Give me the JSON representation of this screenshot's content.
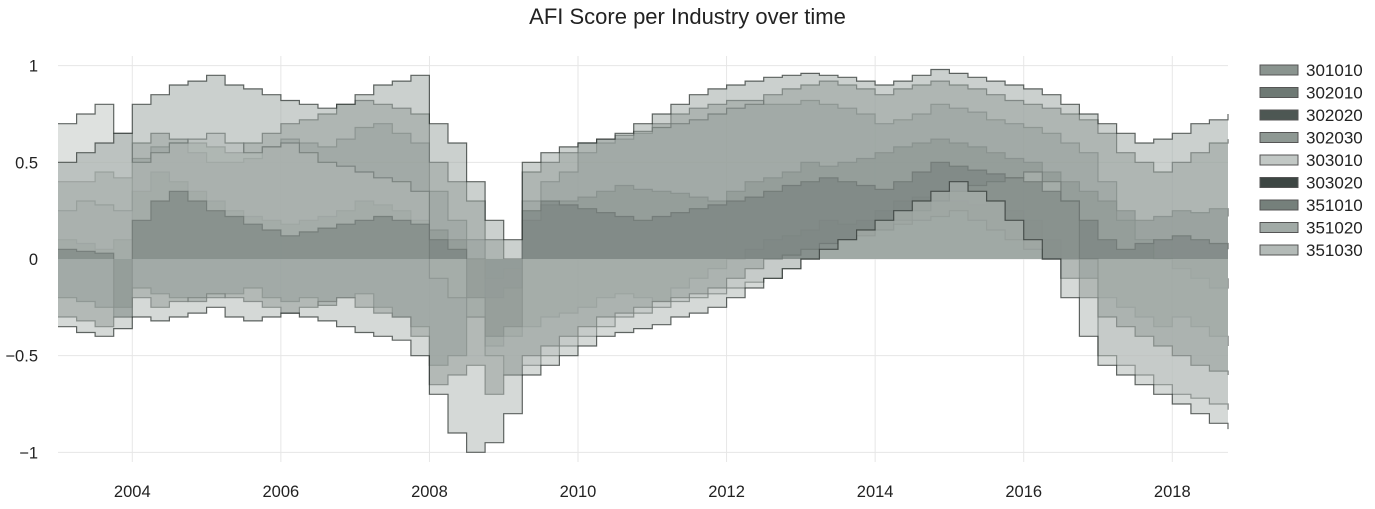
{
  "chart_data": {
    "type": "area",
    "title": "AFI Score per Industry over time",
    "xlabel": "",
    "ylabel": "",
    "xlim": [
      2003.0,
      2018.75
    ],
    "ylim": [
      -1.05,
      1.05
    ],
    "x_ticks": [
      2004,
      2006,
      2008,
      2010,
      2012,
      2014,
      2016,
      2018
    ],
    "y_ticks": [
      -1,
      -0.5,
      0,
      0.5,
      1
    ],
    "y_tick_labels": [
      "−1",
      "−0.5",
      "0",
      "0.5",
      "1"
    ],
    "grid": true,
    "stacked": false,
    "step": true,
    "legend_position": "right",
    "x": [
      2003.0,
      2003.25,
      2003.5,
      2003.75,
      2004.0,
      2004.25,
      2004.5,
      2004.75,
      2005.0,
      2005.25,
      2005.5,
      2005.75,
      2006.0,
      2006.25,
      2006.5,
      2006.75,
      2007.0,
      2007.25,
      2007.5,
      2007.75,
      2008.0,
      2008.25,
      2008.5,
      2008.75,
      2009.0,
      2009.25,
      2009.5,
      2009.75,
      2010.0,
      2010.25,
      2010.5,
      2010.75,
      2011.0,
      2011.25,
      2011.5,
      2011.75,
      2012.0,
      2012.25,
      2012.5,
      2012.75,
      2013.0,
      2013.25,
      2013.5,
      2013.75,
      2014.0,
      2014.25,
      2014.5,
      2014.75,
      2015.0,
      2015.25,
      2015.5,
      2015.75,
      2016.0,
      2016.25,
      2016.5,
      2016.75,
      2017.0,
      2017.25,
      2017.5,
      2017.75,
      2018.0,
      2018.25,
      2018.5,
      2018.75
    ],
    "series": [
      {
        "name": "301010",
        "color": "#8a948f",
        "values": [
          0.4,
          0.4,
          0.45,
          0.42,
          0.52,
          0.58,
          0.6,
          0.55,
          0.5,
          0.5,
          0.52,
          0.58,
          0.62,
          0.6,
          0.58,
          0.62,
          0.68,
          0.7,
          0.65,
          0.6,
          0.35,
          0.2,
          0.1,
          -0.1,
          -0.05,
          0.3,
          0.4,
          0.45,
          0.55,
          0.6,
          0.62,
          0.65,
          0.7,
          0.75,
          0.78,
          0.8,
          0.82,
          0.82,
          0.8,
          0.8,
          0.82,
          0.8,
          0.78,
          0.75,
          0.7,
          0.72,
          0.75,
          0.8,
          0.78,
          0.76,
          0.72,
          0.7,
          0.68,
          0.65,
          0.6,
          0.55,
          0.4,
          0.2,
          0.1,
          0.0,
          -0.05,
          -0.1,
          -0.15,
          -0.1
        ]
      },
      {
        "name": "302010",
        "color": "#6e7974",
        "values": [
          -0.2,
          -0.22,
          -0.25,
          -0.3,
          -0.15,
          -0.18,
          -0.2,
          -0.22,
          -0.2,
          -0.18,
          -0.15,
          -0.2,
          -0.22,
          -0.2,
          -0.24,
          -0.2,
          -0.18,
          -0.25,
          -0.3,
          -0.35,
          -0.55,
          -0.5,
          -0.3,
          -0.45,
          -0.4,
          -0.35,
          -0.3,
          -0.28,
          -0.25,
          -0.2,
          -0.18,
          -0.2,
          -0.22,
          -0.15,
          -0.1,
          -0.05,
          0.0,
          0.05,
          0.1,
          0.12,
          0.15,
          0.2,
          0.18,
          0.2,
          0.25,
          0.3,
          0.32,
          0.35,
          0.3,
          0.28,
          0.3,
          0.25,
          0.2,
          0.1,
          0.0,
          -0.1,
          -0.2,
          -0.25,
          -0.3,
          -0.35,
          -0.3,
          -0.35,
          -0.4,
          -0.45
        ]
      },
      {
        "name": "302020",
        "color": "#4d5753",
        "values": [
          0.1,
          0.08,
          0.05,
          0.1,
          0.35,
          0.45,
          0.4,
          0.35,
          0.3,
          0.25,
          0.22,
          0.2,
          0.18,
          0.2,
          0.22,
          0.25,
          0.3,
          0.28,
          0.25,
          0.2,
          0.15,
          0.1,
          0.0,
          -0.2,
          -0.15,
          0.2,
          0.28,
          0.3,
          0.32,
          0.35,
          0.38,
          0.36,
          0.35,
          0.34,
          0.32,
          0.3,
          0.35,
          0.4,
          0.42,
          0.45,
          0.5,
          0.48,
          0.5,
          0.52,
          0.55,
          0.58,
          0.6,
          0.62,
          0.6,
          0.58,
          0.55,
          0.52,
          0.5,
          0.45,
          0.4,
          0.35,
          0.3,
          0.25,
          0.2,
          0.22,
          0.25,
          0.24,
          0.26,
          0.22
        ]
      },
      {
        "name": "302030",
        "color": "#8e9893",
        "values": [
          0.25,
          0.3,
          0.28,
          0.25,
          0.6,
          0.65,
          0.62,
          0.6,
          0.58,
          0.55,
          0.6,
          0.65,
          0.7,
          0.72,
          0.75,
          0.8,
          0.82,
          0.8,
          0.78,
          0.75,
          0.5,
          0.4,
          0.3,
          0.1,
          0.0,
          0.45,
          0.5,
          0.55,
          0.6,
          0.62,
          0.64,
          0.66,
          0.68,
          0.7,
          0.72,
          0.75,
          0.78,
          0.8,
          0.85,
          0.88,
          0.9,
          0.92,
          0.9,
          0.88,
          0.85,
          0.88,
          0.9,
          0.92,
          0.9,
          0.88,
          0.85,
          0.82,
          0.8,
          0.78,
          0.75,
          0.72,
          0.65,
          0.55,
          0.5,
          0.45,
          0.5,
          0.55,
          0.6,
          0.62
        ]
      },
      {
        "name": "303010",
        "color": "#c2c8c5",
        "values": [
          0.7,
          0.75,
          0.8,
          0.65,
          0.5,
          0.55,
          0.6,
          0.62,
          0.65,
          0.6,
          0.55,
          0.58,
          0.6,
          0.55,
          0.5,
          0.48,
          0.45,
          0.42,
          0.4,
          0.35,
          -0.1,
          -0.2,
          -0.3,
          -0.5,
          -0.6,
          -0.55,
          -0.5,
          -0.45,
          -0.4,
          -0.35,
          -0.3,
          -0.28,
          -0.25,
          -0.22,
          -0.2,
          -0.18,
          -0.15,
          -0.12,
          -0.1,
          -0.05,
          0.0,
          0.05,
          0.1,
          0.12,
          0.15,
          0.2,
          0.25,
          0.3,
          0.35,
          0.38,
          0.4,
          0.42,
          0.45,
          0.4,
          0.3,
          0.0,
          -0.5,
          -0.55,
          -0.6,
          -0.65,
          -0.7,
          -0.72,
          -0.75,
          -0.78
        ]
      },
      {
        "name": "303020",
        "color": "#3d4643",
        "values": [
          0.05,
          0.04,
          0.03,
          -0.25,
          0.2,
          0.3,
          0.35,
          0.3,
          0.25,
          0.22,
          0.18,
          0.15,
          0.12,
          0.14,
          0.16,
          0.18,
          0.2,
          0.22,
          0.2,
          0.18,
          0.1,
          0.05,
          -0.2,
          -0.4,
          -0.35,
          0.25,
          0.3,
          0.28,
          0.26,
          0.24,
          0.22,
          0.2,
          0.22,
          0.24,
          0.26,
          0.28,
          0.3,
          0.32,
          0.35,
          0.38,
          0.4,
          0.42,
          0.4,
          0.38,
          0.36,
          0.4,
          0.45,
          0.5,
          0.48,
          0.46,
          0.44,
          0.42,
          0.4,
          0.35,
          0.3,
          0.2,
          0.1,
          0.05,
          0.08,
          0.1,
          0.12,
          0.1,
          0.08,
          0.05
        ]
      },
      {
        "name": "351010",
        "color": "#75807b",
        "values": [
          -0.3,
          -0.32,
          -0.35,
          -0.3,
          -0.2,
          -0.25,
          -0.22,
          -0.2,
          -0.18,
          -0.2,
          -0.22,
          -0.25,
          -0.28,
          -0.25,
          -0.22,
          -0.2,
          -0.25,
          -0.28,
          -0.3,
          -0.4,
          -0.65,
          -0.6,
          -0.55,
          -0.7,
          -0.6,
          -0.5,
          -0.45,
          -0.4,
          -0.35,
          -0.3,
          -0.28,
          -0.25,
          -0.22,
          -0.2,
          -0.18,
          -0.15,
          -0.1,
          -0.05,
          0.0,
          0.02,
          0.05,
          0.08,
          0.1,
          0.12,
          0.15,
          0.18,
          0.2,
          0.22,
          0.25,
          0.2,
          0.15,
          0.1,
          0.05,
          0.0,
          -0.1,
          -0.2,
          -0.3,
          -0.35,
          -0.4,
          -0.45,
          -0.5,
          -0.55,
          -0.58,
          -0.6
        ]
      },
      {
        "name": "351020",
        "color": "#a1aaa6",
        "values": [
          0.5,
          0.55,
          0.6,
          0.65,
          0.8,
          0.85,
          0.9,
          0.92,
          0.95,
          0.9,
          0.88,
          0.85,
          0.82,
          0.8,
          0.78,
          0.8,
          0.85,
          0.9,
          0.92,
          0.95,
          0.7,
          0.6,
          0.4,
          0.2,
          0.1,
          0.5,
          0.55,
          0.58,
          0.6,
          0.62,
          0.65,
          0.7,
          0.75,
          0.8,
          0.85,
          0.88,
          0.9,
          0.92,
          0.94,
          0.95,
          0.96,
          0.95,
          0.94,
          0.92,
          0.9,
          0.92,
          0.95,
          0.98,
          0.96,
          0.94,
          0.92,
          0.9,
          0.88,
          0.85,
          0.8,
          0.75,
          0.7,
          0.65,
          0.6,
          0.62,
          0.65,
          0.7,
          0.72,
          0.75
        ]
      },
      {
        "name": "351030",
        "color": "#b3bab7",
        "values": [
          -0.35,
          -0.38,
          -0.4,
          -0.36,
          -0.3,
          -0.32,
          -0.3,
          -0.28,
          -0.25,
          -0.3,
          -0.32,
          -0.3,
          -0.28,
          -0.3,
          -0.32,
          -0.35,
          -0.38,
          -0.4,
          -0.42,
          -0.5,
          -0.7,
          -0.9,
          -1.0,
          -0.95,
          -0.8,
          -0.6,
          -0.55,
          -0.5,
          -0.45,
          -0.4,
          -0.38,
          -0.36,
          -0.34,
          -0.3,
          -0.28,
          -0.25,
          -0.2,
          -0.15,
          -0.1,
          -0.05,
          0.0,
          0.05,
          0.1,
          0.15,
          0.2,
          0.25,
          0.3,
          0.35,
          0.4,
          0.35,
          0.3,
          0.2,
          0.1,
          0.0,
          -0.2,
          -0.4,
          -0.55,
          -0.6,
          -0.65,
          -0.7,
          -0.75,
          -0.8,
          -0.85,
          -0.88
        ]
      }
    ]
  }
}
